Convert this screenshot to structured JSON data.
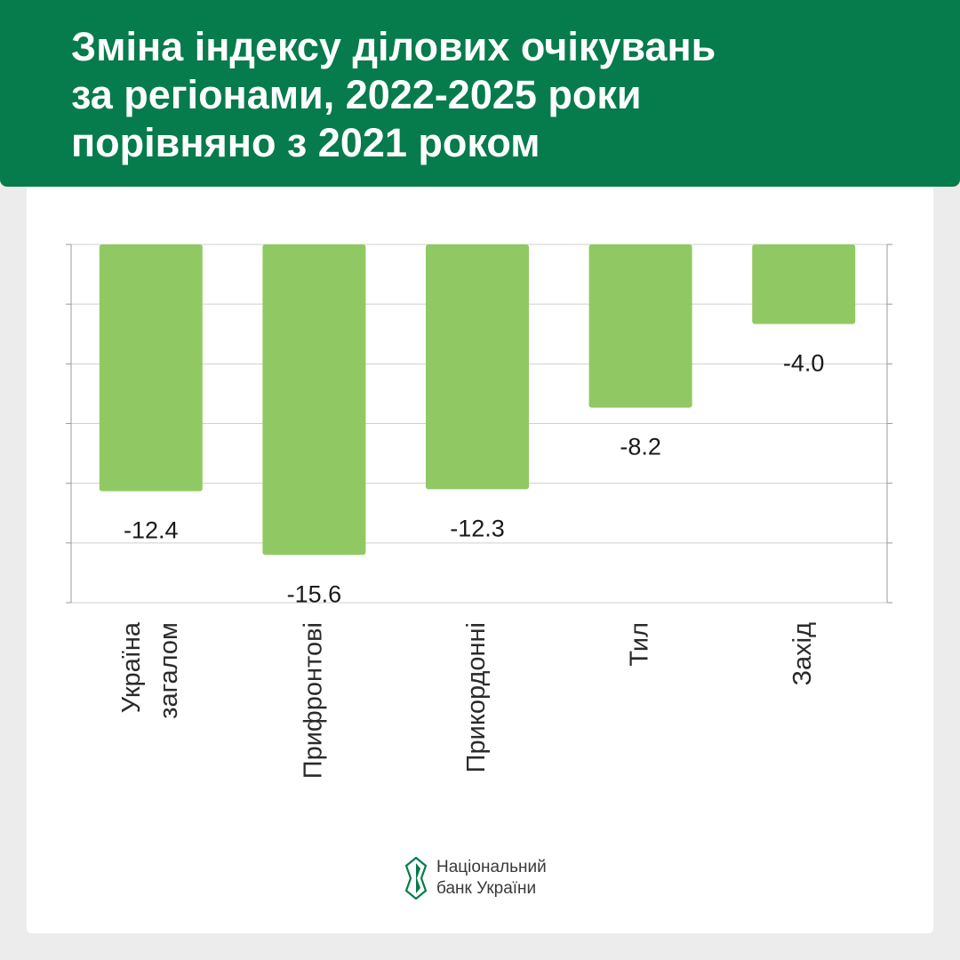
{
  "header": {
    "title_lines": [
      "Зміна індексу ділових очікувань",
      "за регіонами, 2022-2025 роки",
      "порівняно з 2021 роком"
    ]
  },
  "chart_data": {
    "type": "bar",
    "categories": [
      [
        "Україна",
        "загалом"
      ],
      [
        "Прифронтові"
      ],
      [
        "Прикордонні"
      ],
      [
        "Тил"
      ],
      [
        "Захід"
      ]
    ],
    "values": [
      -12.4,
      -15.6,
      -12.3,
      -8.2,
      -4.0
    ],
    "data_labels": [
      "-12.4",
      "-15.6",
      "-12.3",
      "-8.2",
      "-4.0"
    ],
    "ylim": [
      -18,
      0
    ],
    "grid": true,
    "bar_color": "#90c963",
    "grid_color": "#cfcfcf"
  },
  "footer": {
    "logo_lines": [
      "Національний",
      "банк України"
    ],
    "logo_color": "#067b4b"
  }
}
